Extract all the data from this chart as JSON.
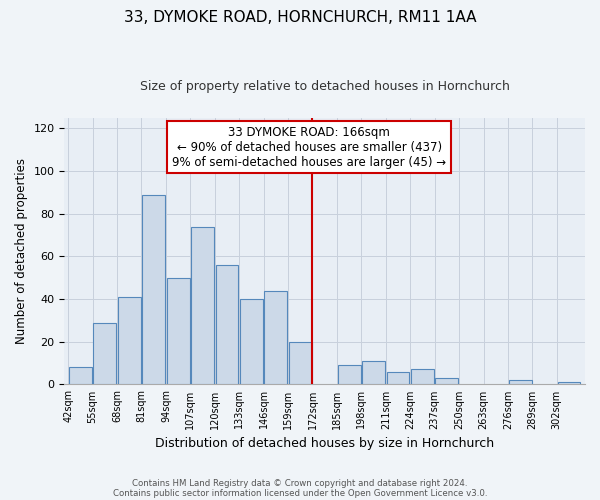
{
  "title": "33, DYMOKE ROAD, HORNCHURCH, RM11 1AA",
  "subtitle": "Size of property relative to detached houses in Hornchurch",
  "xlabel": "Distribution of detached houses by size in Hornchurch",
  "ylabel": "Number of detached properties",
  "bin_labels": [
    "42sqm",
    "55sqm",
    "68sqm",
    "81sqm",
    "94sqm",
    "107sqm",
    "120sqm",
    "133sqm",
    "146sqm",
    "159sqm",
    "172sqm",
    "185sqm",
    "198sqm",
    "211sqm",
    "224sqm",
    "237sqm",
    "250sqm",
    "263sqm",
    "276sqm",
    "289sqm",
    "302sqm"
  ],
  "bin_edges": [
    42,
    55,
    68,
    81,
    94,
    107,
    120,
    133,
    146,
    159,
    172,
    185,
    198,
    211,
    224,
    237,
    250,
    263,
    276,
    289,
    302
  ],
  "bar_heights": [
    8,
    29,
    41,
    89,
    50,
    74,
    56,
    40,
    44,
    20,
    0,
    9,
    11,
    6,
    7,
    3,
    0,
    0,
    2,
    0,
    1
  ],
  "bar_color": "#ccd9e8",
  "bar_edgecolor": "#5588bb",
  "vline_x": 172,
  "vline_color": "#cc0000",
  "annotation_title": "33 DYMOKE ROAD: 166sqm",
  "annotation_line1": "← 90% of detached houses are smaller (437)",
  "annotation_line2": "9% of semi-detached houses are larger (45) →",
  "annotation_box_facecolor": "#ffffff",
  "annotation_box_edgecolor": "#cc0000",
  "ylim": [
    0,
    125
  ],
  "yticks": [
    0,
    20,
    40,
    60,
    80,
    100,
    120
  ],
  "footer1": "Contains HM Land Registry data © Crown copyright and database right 2024.",
  "footer2": "Contains public sector information licensed under the Open Government Licence v3.0.",
  "background_color": "#f0f4f8",
  "plot_background_color": "#e8eef5",
  "title_fontsize": 11,
  "subtitle_fontsize": 9
}
